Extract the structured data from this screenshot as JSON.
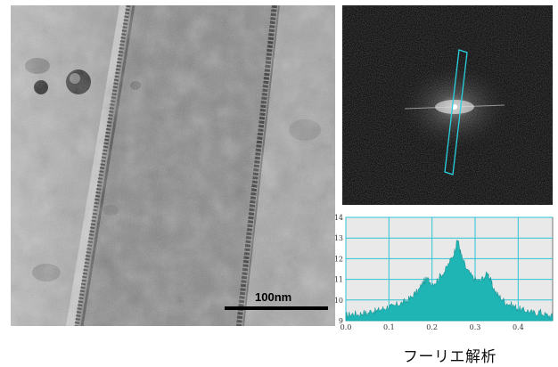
{
  "tem_image": {
    "scale_bar_label": "100nm"
  },
  "fft_image": {
    "roi_color": "#28d2e0"
  },
  "chart_data": {
    "type": "area",
    "title": "",
    "xlabel": "",
    "ylabel": "",
    "xlim": [
      0.0,
      0.48
    ],
    "ylim": [
      9,
      14
    ],
    "x_ticks": [
      "0.0",
      "0.1",
      "0.2",
      "0.3",
      "0.4"
    ],
    "y_ticks": [
      "9",
      "10",
      "11",
      "12",
      "13",
      "14"
    ],
    "grid": true,
    "fill_color": "#1fb5b5",
    "series": [
      {
        "x": [
          0.0,
          0.01,
          0.02,
          0.03,
          0.04,
          0.05,
          0.06,
          0.07,
          0.08,
          0.09,
          0.1,
          0.11,
          0.12,
          0.13,
          0.14,
          0.15,
          0.16,
          0.17,
          0.18,
          0.19,
          0.2,
          0.21,
          0.22,
          0.23,
          0.24,
          0.25,
          0.255,
          0.26,
          0.265,
          0.27,
          0.28,
          0.29,
          0.3,
          0.31,
          0.32,
          0.33,
          0.335,
          0.34,
          0.35,
          0.36,
          0.37,
          0.38,
          0.39,
          0.4,
          0.41,
          0.42,
          0.43,
          0.44,
          0.45,
          0.46,
          0.47,
          0.48
        ],
        "values": [
          9.25,
          9.3,
          9.35,
          9.3,
          9.4,
          9.35,
          9.5,
          9.45,
          9.55,
          9.6,
          9.7,
          9.65,
          9.8,
          9.85,
          9.95,
          10.1,
          10.3,
          10.5,
          10.9,
          11.0,
          10.8,
          10.9,
          11.2,
          11.4,
          11.8,
          12.2,
          12.6,
          12.95,
          12.4,
          12.0,
          11.5,
          11.2,
          11.0,
          10.9,
          11.1,
          11.3,
          11.0,
          10.7,
          10.3,
          10.1,
          9.9,
          9.8,
          9.7,
          9.6,
          9.5,
          9.5,
          9.4,
          9.35,
          9.45,
          9.3,
          9.25,
          9.2
        ]
      }
    ]
  },
  "caption": "フーリエ解析"
}
